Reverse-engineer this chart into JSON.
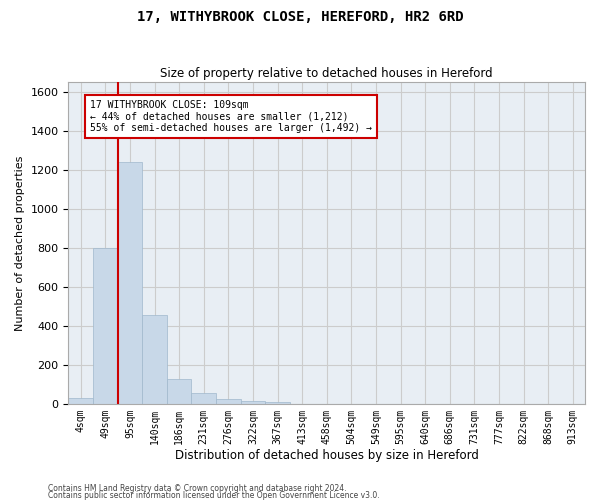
{
  "title": "17, WITHYBROOK CLOSE, HEREFORD, HR2 6RD",
  "subtitle": "Size of property relative to detached houses in Hereford",
  "xlabel": "Distribution of detached houses by size in Hereford",
  "ylabel": "Number of detached properties",
  "bar_labels": [
    "4sqm",
    "49sqm",
    "95sqm",
    "140sqm",
    "186sqm",
    "231sqm",
    "276sqm",
    "322sqm",
    "367sqm",
    "413sqm",
    "458sqm",
    "504sqm",
    "549sqm",
    "595sqm",
    "640sqm",
    "686sqm",
    "731sqm",
    "777sqm",
    "822sqm",
    "868sqm",
    "913sqm"
  ],
  "bar_values": [
    30,
    800,
    1240,
    455,
    125,
    55,
    25,
    12,
    8,
    0,
    0,
    0,
    0,
    0,
    0,
    0,
    0,
    0,
    0,
    0,
    0
  ],
  "bar_color": "#c8d8e8",
  "bar_edgecolor": "#a0b8cc",
  "vline_color": "#cc0000",
  "annotation_text": "17 WITHYBROOK CLOSE: 109sqm\n← 44% of detached houses are smaller (1,212)\n55% of semi-detached houses are larger (1,492) →",
  "annotation_box_color": "#ffffff",
  "annotation_edge_color": "#cc0000",
  "ylim": [
    0,
    1650
  ],
  "yticks": [
    0,
    200,
    400,
    600,
    800,
    1000,
    1200,
    1400,
    1600
  ],
  "grid_color": "#cccccc",
  "background_color": "#e8eef4",
  "footer_line1": "Contains HM Land Registry data © Crown copyright and database right 2024.",
  "footer_line2": "Contains public sector information licensed under the Open Government Licence v3.0."
}
